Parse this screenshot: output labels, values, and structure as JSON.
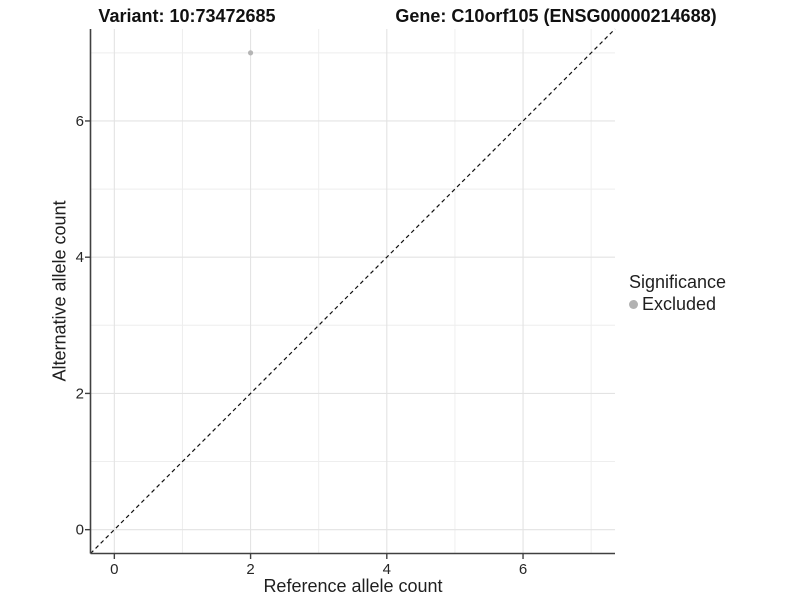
{
  "header": {
    "variant_title": "Variant: 10:73472685",
    "gene_title": "Gene: C10orf105 (ENSG00000214688)"
  },
  "chart_data": {
    "type": "scatter",
    "xlabel": "Reference allele count",
    "ylabel": "Alternative allele count",
    "xlim": [
      -0.35,
      7.35
    ],
    "ylim": [
      -0.35,
      7.35
    ],
    "x_major_ticks": [
      0,
      2,
      4,
      6
    ],
    "y_major_ticks": [
      0,
      2,
      4,
      6
    ],
    "x_minor_gridlines": [
      1,
      3,
      5,
      7
    ],
    "y_minor_gridlines": [
      1,
      3,
      5,
      7
    ],
    "grid": true,
    "points": [
      {
        "x": 2,
        "y": 7,
        "significance": "Excluded"
      }
    ],
    "identity_line": {
      "style": "dashed",
      "from": [
        -0.35,
        -0.35
      ],
      "to": [
        7.35,
        7.35
      ]
    },
    "legend": {
      "title": "Significance",
      "position": "right",
      "entries": [
        {
          "label": "Excluded",
          "color": "#b2b2b2"
        }
      ]
    },
    "colors": {
      "point": "#b5b5b5",
      "axis": "#404040",
      "grid_major": "#e3e3e3",
      "grid_minor": "#eeeeee",
      "dashed_line": "#111111",
      "tick_text": "#262626"
    }
  }
}
